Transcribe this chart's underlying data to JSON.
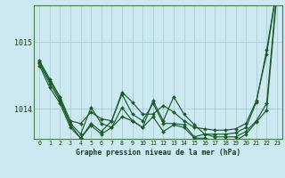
{
  "title": "Graphe pression niveau de la mer (hPa)",
  "bg_color": "#cce8f0",
  "grid_color": "#aaccd8",
  "line_color": "#1a5c28",
  "x_ticks": [
    0,
    1,
    2,
    3,
    4,
    5,
    6,
    7,
    8,
    9,
    10,
    11,
    12,
    13,
    14,
    15,
    16,
    17,
    18,
    19,
    20,
    21,
    22,
    23
  ],
  "ylim": [
    1013.55,
    1015.55
  ],
  "yticks": [
    1014.0,
    1015.0
  ],
  "series": [
    [
      1014.72,
      1014.45,
      1014.18,
      1013.82,
      1013.78,
      1013.95,
      1013.85,
      1013.82,
      1014.25,
      1014.1,
      1013.92,
      1013.92,
      1014.05,
      1013.95,
      1013.82,
      1013.72,
      1013.7,
      1013.68,
      1013.68,
      1013.7,
      1013.78,
      1014.12,
      1014.82,
      1015.8
    ],
    [
      1014.7,
      1014.42,
      1014.15,
      1013.78,
      1013.62,
      1014.02,
      1013.78,
      1013.72,
      1013.88,
      1013.82,
      1013.72,
      1014.12,
      1013.82,
      1014.18,
      1013.92,
      1013.76,
      1013.62,
      1013.62,
      1013.62,
      1013.64,
      1013.72,
      1014.1,
      1014.88,
      1015.82
    ],
    [
      1014.68,
      1014.38,
      1014.12,
      1013.76,
      1013.56,
      1013.78,
      1013.66,
      1013.82,
      1014.22,
      1013.92,
      1013.82,
      1014.08,
      1013.78,
      1013.78,
      1013.76,
      1013.58,
      1013.62,
      1013.58,
      1013.58,
      1013.58,
      1013.66,
      1013.82,
      1014.08,
      1015.78
    ],
    [
      1014.65,
      1014.32,
      1014.08,
      1013.72,
      1013.56,
      1013.75,
      1013.62,
      1013.72,
      1014.02,
      1013.82,
      1013.72,
      1013.88,
      1013.66,
      1013.76,
      1013.72,
      1013.56,
      1013.56,
      1013.52,
      1013.52,
      1013.52,
      1013.62,
      1013.8,
      1013.98,
      1015.72
    ]
  ]
}
